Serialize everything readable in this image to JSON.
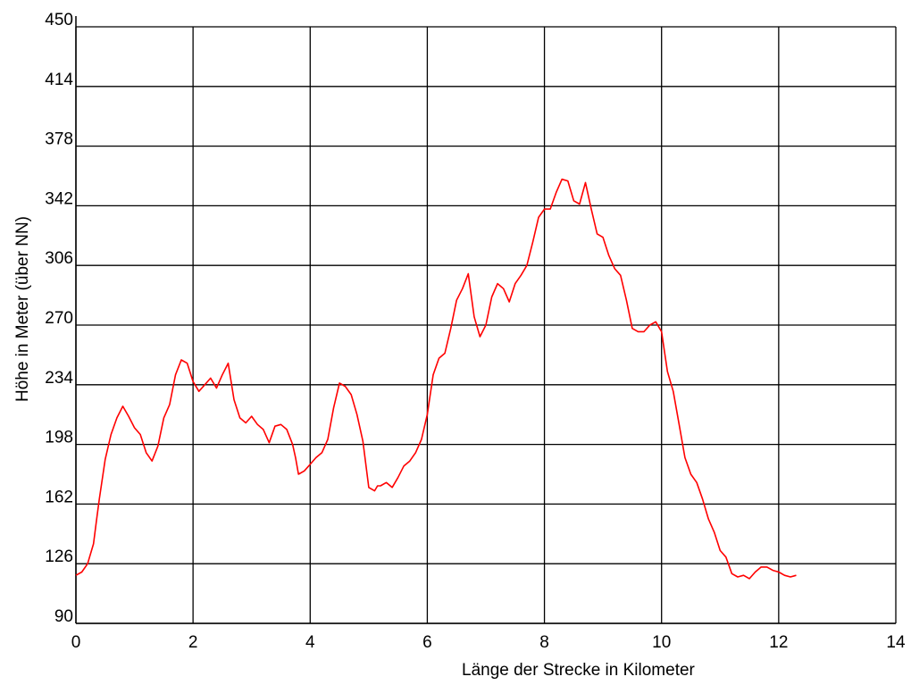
{
  "chart_data": {
    "type": "line",
    "title": "",
    "xlabel": "Länge der Strecke in Kilometer",
    "ylabel": "Höhe in Meter (über NN)",
    "xlim": [
      0,
      14
    ],
    "ylim": [
      90,
      450
    ],
    "xticks": [
      "0",
      "2",
      "4",
      "6",
      "8",
      "10",
      "12",
      "14"
    ],
    "yticks": [
      "90",
      "126",
      "162",
      "198",
      "234",
      "270",
      "306",
      "342",
      "378",
      "414",
      "450"
    ],
    "grid": true,
    "line_color": "#ff0000",
    "grid_color": "#000000",
    "series": [
      {
        "x": [
          0,
          0.1,
          0.2,
          0.3,
          0.35,
          0.4,
          0.5,
          0.6,
          0.7,
          0.8,
          0.9,
          1.0,
          1.1,
          1.2,
          1.3,
          1.4,
          1.5,
          1.6,
          1.7,
          1.8,
          1.9,
          2.0,
          2.1,
          2.2,
          2.3,
          2.4,
          2.5,
          2.6,
          2.7,
          2.8,
          2.9,
          3.0,
          3.1,
          3.2,
          3.3,
          3.4,
          3.5,
          3.6,
          3.7,
          3.75,
          3.8,
          3.9,
          4.0,
          4.1,
          4.2,
          4.3,
          4.4,
          4.5,
          4.6,
          4.7,
          4.8,
          4.9,
          5.0,
          5.1,
          5.15,
          5.2,
          5.3,
          5.4,
          5.5,
          5.6,
          5.7,
          5.8,
          5.9,
          6.0,
          6.1,
          6.2,
          6.3,
          6.4,
          6.5,
          6.6,
          6.7,
          6.8,
          6.9,
          7.0,
          7.1,
          7.2,
          7.3,
          7.4,
          7.5,
          7.6,
          7.7,
          7.8,
          7.9,
          8.0,
          8.1,
          8.2,
          8.3,
          8.4,
          8.5,
          8.6,
          8.7,
          8.8,
          8.9,
          9.0,
          9.1,
          9.2,
          9.3,
          9.4,
          9.5,
          9.6,
          9.7,
          9.8,
          9.9,
          10.0,
          10.1,
          10.2,
          10.3,
          10.4,
          10.5,
          10.6,
          10.7,
          10.8,
          10.9,
          11.0,
          11.1,
          11.2,
          11.3,
          11.4,
          11.5,
          11.6,
          11.7,
          11.8,
          11.9,
          12.0,
          12.1,
          12.2,
          12.3
        ],
        "y": [
          119,
          121,
          126,
          138,
          152,
          165,
          189,
          204,
          214,
          221,
          215,
          208,
          204,
          193,
          188,
          197,
          214,
          222,
          240,
          249,
          247,
          236,
          230,
          234,
          238,
          232,
          240,
          247,
          225,
          214,
          211,
          215,
          210,
          207,
          199,
          209,
          210,
          207,
          198,
          190,
          180,
          182,
          186,
          190,
          193,
          201,
          220,
          235,
          233,
          228,
          216,
          200,
          172,
          170,
          173,
          173,
          175,
          172,
          178,
          185,
          188,
          193,
          201,
          216,
          240,
          250,
          253,
          268,
          285,
          292,
          301,
          275,
          263,
          270,
          287,
          295,
          292,
          284,
          295,
          300,
          306,
          320,
          335,
          340,
          340,
          350,
          358,
          357,
          345,
          343,
          356,
          340,
          325,
          323,
          312,
          304,
          300,
          285,
          268,
          266,
          266,
          270,
          272,
          266,
          242,
          230,
          210,
          190,
          180,
          175,
          165,
          153,
          145,
          134,
          130,
          120,
          118,
          119,
          117,
          121,
          124,
          124,
          122,
          121,
          119,
          118,
          119
        ]
      }
    ]
  }
}
